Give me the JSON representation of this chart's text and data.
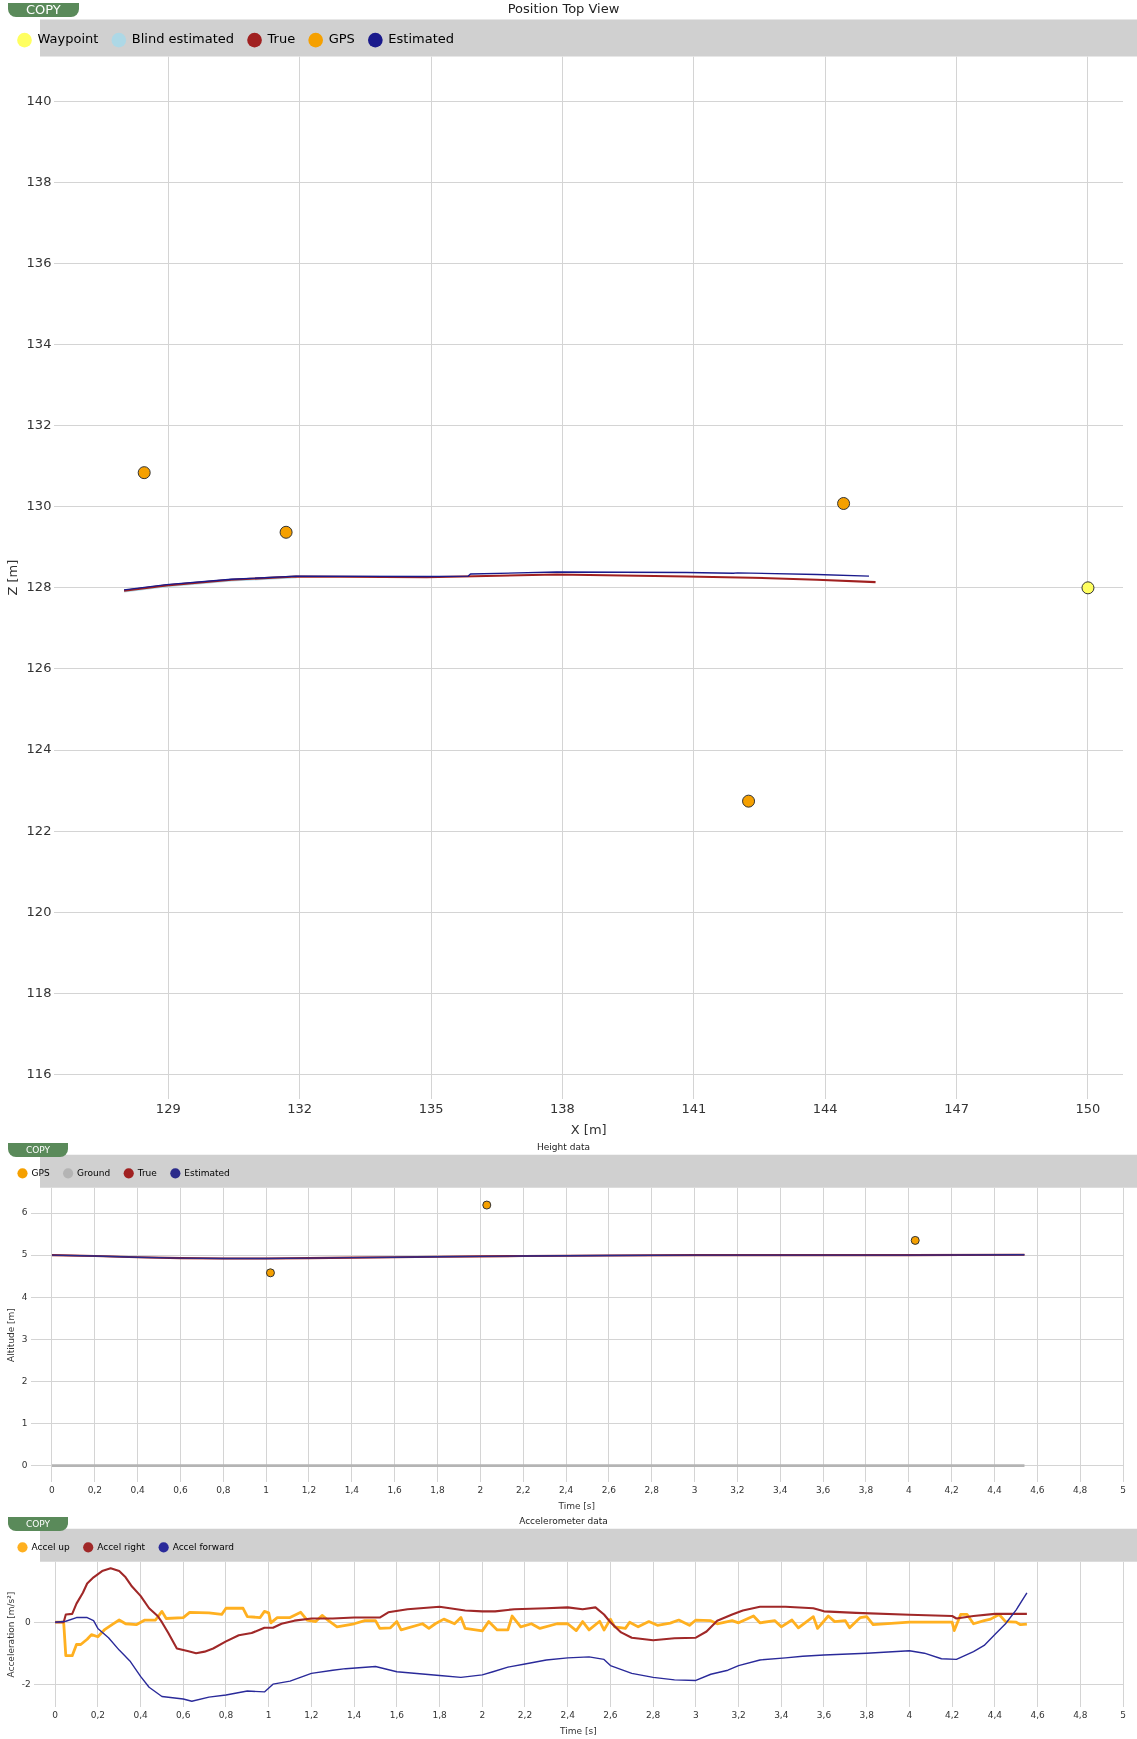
{
  "chart_data": [
    {
      "type": "line",
      "title": "Position Top View",
      "xlabel": "X [m]",
      "ylabel": "Z [m]",
      "annotations": [
        "COPY"
      ],
      "legend": "top left",
      "grid": true,
      "xlim": [
        126.4,
        150.8
      ],
      "xticks": [
        129,
        132,
        135,
        138,
        141,
        144,
        147,
        150
      ],
      "ylim": [
        115.4,
        141.1
      ],
      "yticks": [
        116,
        118,
        120,
        122,
        124,
        126,
        128,
        130,
        132,
        134,
        136,
        138,
        140
      ],
      "series": [
        {
          "name": "Waypoint",
          "type": "scatter",
          "marker": "circle",
          "color": "#ffff60",
          "x": [
            150
          ],
          "values": [
            128
          ]
        },
        {
          "name": "Blind estimated",
          "type": "line",
          "marker": "none",
          "color": "#add8e6",
          "x": [
            127.99,
            128.96,
            130.44,
            131.93
          ],
          "values": [
            127.92,
            128.05,
            128.19,
            128.27
          ]
        },
        {
          "name": "True",
          "type": "line",
          "marker": "none",
          "color": "#a02020",
          "x": [
            127.99,
            128.96,
            130.44,
            131.93,
            134.9,
            137.87,
            140.84,
            142.33,
            143.81,
            145.15
          ],
          "values": [
            127.93,
            128.06,
            128.2,
            128.28,
            128.26,
            128.33,
            128.28,
            128.25,
            128.2,
            128.14
          ]
        },
        {
          "name": "GPS",
          "type": "scatter",
          "marker": "circle",
          "color": "#f5a000",
          "x": [
            128.45,
            131.69,
            144.42,
            142.25
          ],
          "values": [
            130.84,
            129.37,
            130.08,
            122.74
          ]
        },
        {
          "name": "Estimated",
          "type": "line",
          "marker": "none",
          "color": "#1a1a8c",
          "x": [
            127.99,
            128.96,
            130.44,
            131.93,
            134.9,
            135.85,
            135.9,
            137.87,
            140.84,
            141.9,
            142.0,
            143.81,
            145.0
          ],
          "values": [
            127.95,
            128.08,
            128.21,
            128.29,
            128.28,
            128.29,
            128.34,
            128.39,
            128.38,
            128.36,
            128.37,
            128.33,
            128.29
          ]
        }
      ]
    },
    {
      "type": "line",
      "title": "Height data",
      "xlabel": "Time [s]",
      "ylabel": "Altitude [m]",
      "annotations": [
        "COPY"
      ],
      "legend": "top left",
      "grid": true,
      "xlim": [
        -0.1,
        5
      ],
      "xticks": [
        0,
        {
          "value": 0.2,
          "label": "0,2"
        },
        {
          "value": 0.4,
          "label": "0,4"
        },
        {
          "value": 0.6,
          "label": "0,6"
        },
        {
          "value": 0.8,
          "label": "0,8"
        },
        1,
        {
          "value": 1.2,
          "label": "1,2"
        },
        {
          "value": 1.4,
          "label": "1,4"
        },
        {
          "value": 1.6,
          "label": "1,6"
        },
        {
          "value": 1.8,
          "label": "1,8"
        },
        2,
        {
          "value": 2.2,
          "label": "2,2"
        },
        {
          "value": 2.4,
          "label": "2,4"
        },
        {
          "value": 2.6,
          "label": "2,6"
        },
        {
          "value": 2.8,
          "label": "2,8"
        },
        3,
        {
          "value": 3.2,
          "label": "3,2"
        },
        {
          "value": 3.4,
          "label": "3,4"
        },
        {
          "value": 3.6,
          "label": "3,6"
        },
        {
          "value": 3.8,
          "label": "3,8"
        },
        4,
        {
          "value": 4.2,
          "label": "4,2"
        },
        {
          "value": 4.4,
          "label": "4,4"
        },
        {
          "value": 4.6,
          "label": "4,6"
        },
        {
          "value": 4.8,
          "label": "4,8"
        },
        5
      ],
      "ylim": [
        -0.4,
        6.6
      ],
      "yticks": [
        0,
        1,
        2,
        3,
        4,
        5,
        6
      ],
      "series": [
        {
          "name": "GPS",
          "type": "scatter",
          "marker": "circle",
          "color": "#f5a000",
          "x": [
            1.02,
            2.03,
            4.03
          ],
          "values": [
            4.58,
            6.19,
            5.35
          ]
        },
        {
          "name": "Ground",
          "type": "line",
          "marker": "none",
          "color": "#b4b4b4",
          "x": [
            0,
            4.54
          ],
          "values": [
            0,
            0
          ]
        },
        {
          "name": "True",
          "type": "line",
          "marker": "none",
          "color": "#a02020",
          "x": [
            0,
            0.2,
            0.4,
            0.6,
            0.8,
            1.0,
            1.2,
            1.4,
            1.6,
            1.8,
            2.0,
            2.2,
            2.6,
            3.0,
            3.5,
            4.0,
            4.54
          ],
          "values": [
            5.0,
            4.98,
            4.95,
            4.93,
            4.92,
            4.92,
            4.93,
            4.94,
            4.95,
            4.96,
            4.97,
            4.98,
            4.99,
            5.0,
            5.0,
            5.0,
            5.01
          ]
        },
        {
          "name": "Estimated",
          "type": "line",
          "marker": "none",
          "color": "#2a2a8a",
          "x": [
            0,
            0.2,
            0.4,
            0.6,
            0.8,
            1.0,
            1.2,
            1.4,
            1.6,
            1.8,
            2.0,
            2.2,
            2.6,
            3.0,
            3.5,
            4.0,
            4.54
          ],
          "values": [
            5.0,
            4.98,
            4.95,
            4.93,
            4.92,
            4.92,
            4.93,
            4.94,
            4.95,
            4.96,
            4.97,
            4.98,
            4.99,
            5.0,
            5.0,
            5.0,
            5.01
          ]
        }
      ]
    },
    {
      "type": "line",
      "title": "Accelerometer data",
      "xlabel": "Time [s]",
      "ylabel": "Acceleration [m/s²]",
      "annotations": [
        "COPY"
      ],
      "legend": "top left",
      "grid": true,
      "xlim": [
        -0.1,
        5
      ],
      "xticks": [
        0,
        {
          "value": 0.2,
          "label": "0,2"
        },
        {
          "value": 0.4,
          "label": "0,4"
        },
        {
          "value": 0.6,
          "label": "0,6"
        },
        {
          "value": 0.8,
          "label": "0,8"
        },
        1,
        {
          "value": 1.2,
          "label": "1,2"
        },
        {
          "value": 1.4,
          "label": "1,4"
        },
        {
          "value": 1.6,
          "label": "1,6"
        },
        {
          "value": 1.8,
          "label": "1,8"
        },
        2,
        {
          "value": 2.2,
          "label": "2,2"
        },
        {
          "value": 2.4,
          "label": "2,4"
        },
        {
          "value": 2.6,
          "label": "2,6"
        },
        {
          "value": 2.8,
          "label": "2,8"
        },
        3,
        {
          "value": 3.2,
          "label": "3,2"
        },
        {
          "value": 3.4,
          "label": "3,4"
        },
        {
          "value": 3.6,
          "label": "3,6"
        },
        {
          "value": 3.8,
          "label": "3,8"
        },
        4,
        {
          "value": 4.2,
          "label": "4,2"
        },
        {
          "value": 4.4,
          "label": "4,4"
        },
        {
          "value": 4.6,
          "label": "4,6"
        },
        {
          "value": 4.8,
          "label": "4,8"
        },
        5
      ],
      "ylim": [
        -2.75,
        1.95
      ],
      "yticks": [
        -2,
        0
      ],
      "series": [
        {
          "name": "Accel up",
          "type": "line",
          "marker": "none",
          "color": "#ffb020",
          "x": [
            0,
            0.04,
            0.05,
            0.08,
            0.1,
            0.12,
            0.15,
            0.17,
            0.2,
            0.23,
            0.27,
            0.3,
            0.33,
            0.38,
            0.42,
            0.47,
            0.5,
            0.52,
            0.6,
            0.63,
            0.72,
            0.78,
            0.8,
            0.88,
            0.9,
            0.96,
            0.98,
            1.0,
            1.01,
            1.04,
            1.1,
            1.15,
            1.18,
            1.22,
            1.25,
            1.28,
            1.32,
            1.4,
            1.45,
            1.5,
            1.52,
            1.57,
            1.6,
            1.62,
            1.72,
            1.75,
            1.78,
            1.82,
            1.87,
            1.9,
            1.92,
            2.0,
            2.03,
            2.07,
            2.12,
            2.14,
            2.18,
            2.23,
            2.27,
            2.35,
            2.4,
            2.44,
            2.47,
            2.5,
            2.55,
            2.57,
            2.6,
            2.62,
            2.67,
            2.69,
            2.73,
            2.78,
            2.82,
            2.88,
            2.92,
            2.97,
            3.0,
            3.07,
            3.1,
            3.17,
            3.2,
            3.27,
            3.3,
            3.37,
            3.4,
            3.45,
            3.48,
            3.55,
            3.57,
            3.62,
            3.65,
            3.7,
            3.72,
            3.77,
            3.8,
            3.83,
            4.0,
            4.2,
            4.21,
            4.24,
            4.27,
            4.3,
            4.35,
            4.38,
            4.42,
            4.45,
            4.5,
            4.52,
            4.55
          ],
          "values": [
            0,
            0,
            -1.08,
            -1.08,
            -0.72,
            -0.72,
            -0.55,
            -0.4,
            -0.47,
            -0.25,
            -0.06,
            0.07,
            -0.05,
            -0.08,
            0.07,
            0.07,
            0.35,
            0.12,
            0.15,
            0.32,
            0.3,
            0.25,
            0.45,
            0.45,
            0.18,
            0.15,
            0.35,
            0.3,
            -0.02,
            0.15,
            0.15,
            0.32,
            0.07,
            0.02,
            0.22,
            0.05,
            -0.15,
            -0.05,
            0.05,
            0.05,
            -0.2,
            -0.18,
            0.02,
            -0.25,
            -0.05,
            -0.2,
            -0.05,
            0.1,
            -0.05,
            0.15,
            -0.2,
            -0.28,
            0.02,
            -0.25,
            -0.25,
            0.2,
            -0.15,
            -0.05,
            -0.2,
            -0.05,
            -0.05,
            -0.27,
            0.02,
            -0.25,
            0.03,
            -0.25,
            0.1,
            -0.15,
            -0.2,
            0.0,
            -0.15,
            0.02,
            -0.1,
            -0.03,
            0.07,
            -0.1,
            0.07,
            0.05,
            -0.05,
            0.05,
            -0.02,
            0.2,
            -0.02,
            0.05,
            -0.15,
            0.07,
            -0.18,
            0.18,
            -0.2,
            0.2,
            0.02,
            0.05,
            -0.18,
            0.15,
            0.18,
            -0.08,
            0.0,
            0.0,
            -0.27,
            0.25,
            0.25,
            -0.05,
            0.05,
            0.1,
            0.25,
            0.02,
            0.0,
            -0.08,
            -0.06
          ]
        },
        {
          "name": "Accel right",
          "type": "line",
          "marker": "none",
          "color": "#a02828",
          "x": [
            0,
            0.04,
            0.05,
            0.08,
            0.1,
            0.13,
            0.15,
            0.18,
            0.22,
            0.26,
            0.3,
            0.33,
            0.36,
            0.4,
            0.44,
            0.48,
            0.5,
            0.53,
            0.57,
            0.62,
            0.66,
            0.7,
            0.74,
            0.8,
            0.86,
            0.92,
            0.98,
            1.02,
            1.06,
            1.12,
            1.2,
            1.3,
            1.4,
            1.52,
            1.56,
            1.65,
            1.8,
            1.92,
            2.0,
            2.06,
            2.15,
            2.3,
            2.4,
            2.47,
            2.53,
            2.57,
            2.6,
            2.65,
            2.7,
            2.8,
            2.9,
            3.0,
            3.05,
            3.1,
            3.17,
            3.22,
            3.3,
            3.42,
            3.55,
            3.6,
            3.75,
            4.0,
            4.2,
            4.22,
            4.3,
            4.4,
            4.55
          ],
          "values": [
            0,
            0,
            0.25,
            0.27,
            0.6,
            0.95,
            1.25,
            1.45,
            1.65,
            1.74,
            1.65,
            1.45,
            1.15,
            0.85,
            0.45,
            0.2,
            0.0,
            -0.35,
            -0.85,
            -0.93,
            -1.0,
            -0.95,
            -0.85,
            -0.62,
            -0.42,
            -0.35,
            -0.18,
            -0.18,
            -0.05,
            0.05,
            0.12,
            0.12,
            0.15,
            0.15,
            0.32,
            0.42,
            0.5,
            0.38,
            0.35,
            0.35,
            0.42,
            0.45,
            0.48,
            0.42,
            0.48,
            0.25,
            0.0,
            -0.33,
            -0.5,
            -0.58,
            -0.52,
            -0.5,
            -0.3,
            0.05,
            0.25,
            0.38,
            0.5,
            0.5,
            0.45,
            0.35,
            0.3,
            0.24,
            0.2,
            0.12,
            0.2,
            0.27,
            0.27
          ]
        },
        {
          "name": "Accel forward",
          "type": "line",
          "marker": "none",
          "color": "#2a2a9a",
          "x": [
            0,
            0.05,
            0.1,
            0.15,
            0.18,
            0.2,
            0.25,
            0.3,
            0.35,
            0.4,
            0.44,
            0.5,
            0.6,
            0.64,
            0.72,
            0.8,
            0.9,
            0.98,
            1.02,
            1.1,
            1.2,
            1.3,
            1.36,
            1.5,
            1.6,
            1.8,
            1.9,
            2.0,
            2.05,
            2.12,
            2.2,
            2.3,
            2.4,
            2.5,
            2.57,
            2.6,
            2.7,
            2.8,
            2.9,
            3.0,
            3.07,
            3.15,
            3.2,
            3.3,
            3.42,
            3.5,
            3.6,
            3.8,
            4.0,
            4.07,
            4.15,
            4.22,
            4.3,
            4.35,
            4.4,
            4.45,
            4.5,
            4.55
          ],
          "values": [
            0,
            0.03,
            0.15,
            0.15,
            0.05,
            -0.2,
            -0.5,
            -0.9,
            -1.25,
            -1.75,
            -2.1,
            -2.4,
            -2.48,
            -2.55,
            -2.42,
            -2.35,
            -2.22,
            -2.25,
            -2.0,
            -1.9,
            -1.65,
            -1.55,
            -1.5,
            -1.43,
            -1.6,
            -1.72,
            -1.78,
            -1.7,
            -1.6,
            -1.45,
            -1.35,
            -1.22,
            -1.15,
            -1.12,
            -1.2,
            -1.4,
            -1.65,
            -1.78,
            -1.86,
            -1.88,
            -1.68,
            -1.55,
            -1.4,
            -1.22,
            -1.15,
            -1.1,
            -1.06,
            -1.0,
            -0.92,
            -1.0,
            -1.18,
            -1.2,
            -0.95,
            -0.75,
            -0.4,
            -0.05,
            0.4,
            0.95
          ]
        }
      ]
    }
  ]
}
